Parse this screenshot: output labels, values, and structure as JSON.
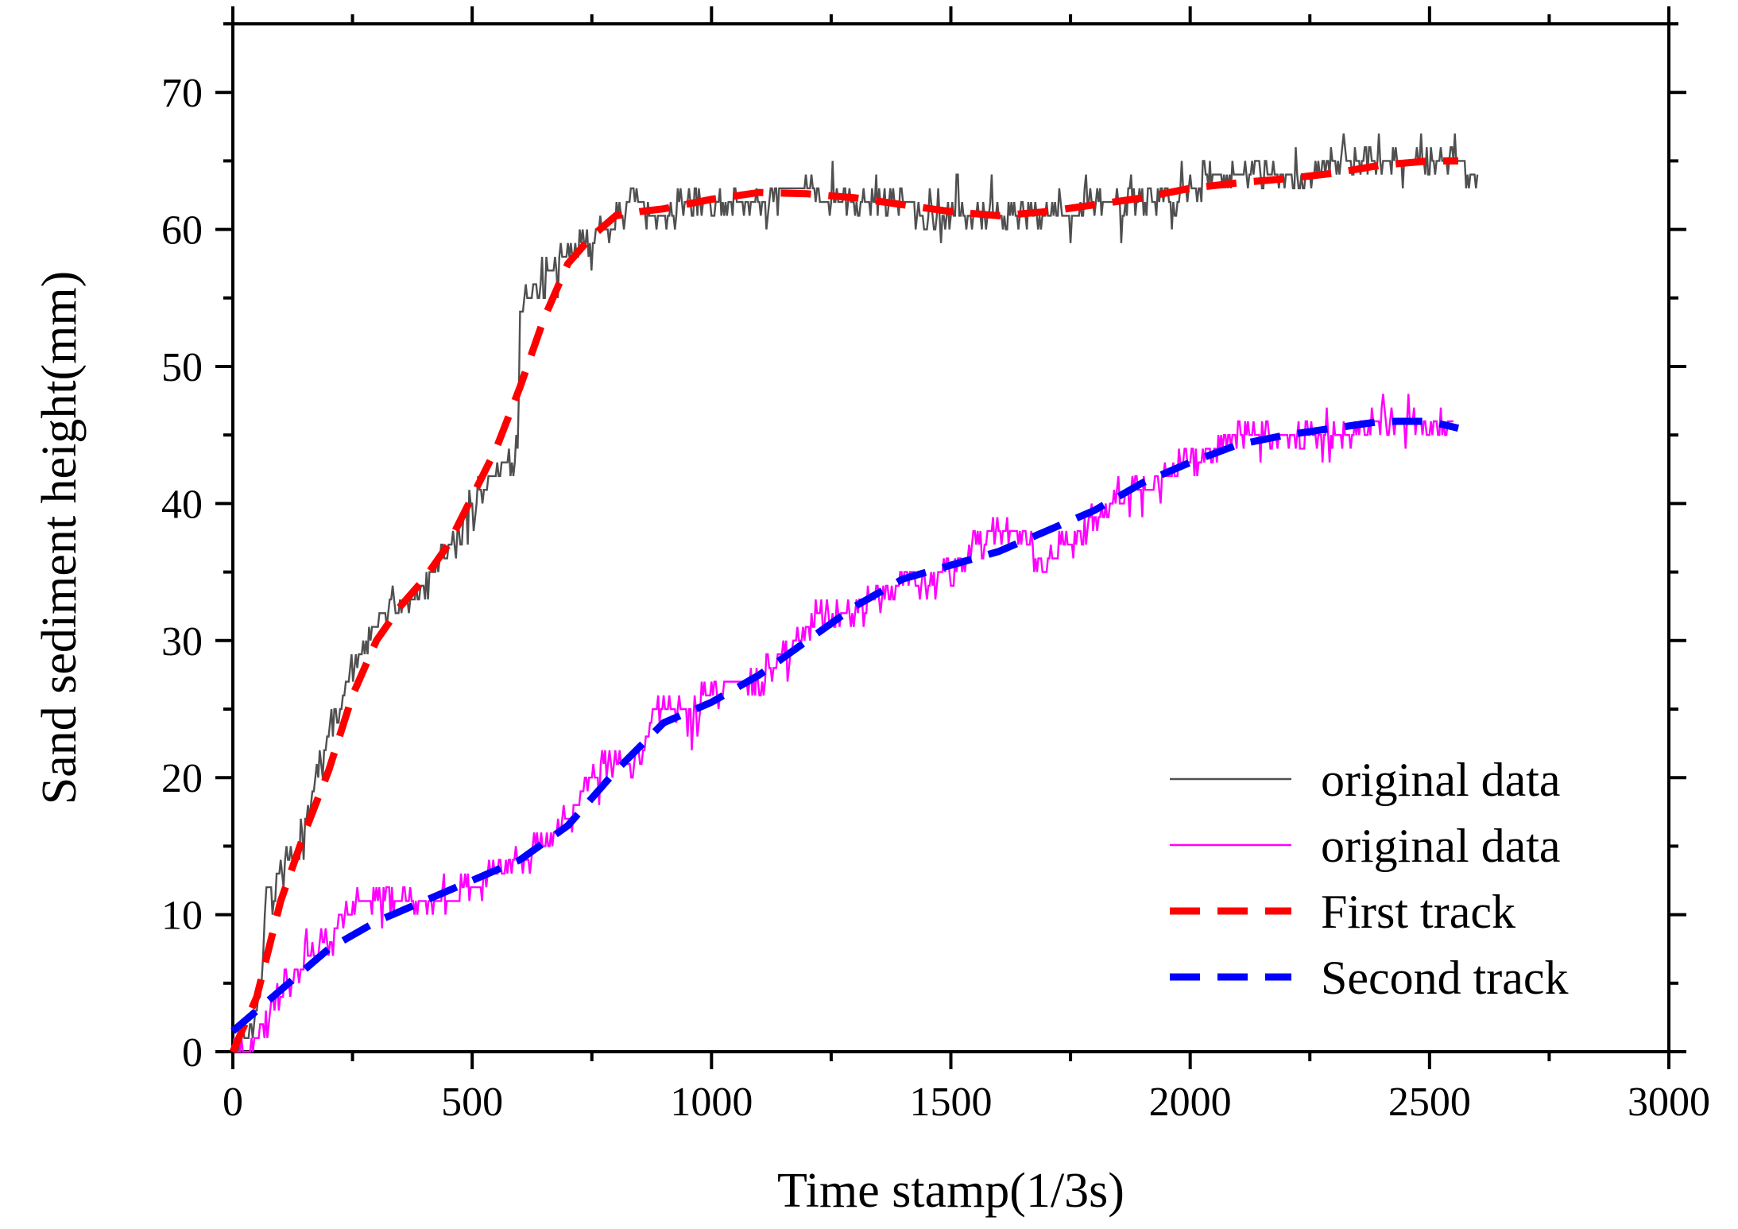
{
  "chart_data": {
    "type": "line",
    "title": "",
    "xlabel": "Time stamp(1/3s)",
    "ylabel": "Sand sediment height(mm)",
    "xlim": [
      0,
      3000
    ],
    "ylim": [
      0,
      75
    ],
    "xticks": [
      0,
      500,
      1000,
      1500,
      2000,
      2500,
      3000
    ],
    "yticks": [
      0,
      10,
      20,
      30,
      40,
      50,
      60,
      70
    ],
    "grid": false,
    "legend_position": "bottom-right",
    "series": [
      {
        "name": "original data",
        "color": "#505050",
        "style": "solid-noisy",
        "x": [
          0,
          30,
          50,
          60,
          70,
          80,
          100,
          130,
          160,
          200,
          230,
          260,
          300,
          340,
          380,
          420,
          460,
          500,
          540,
          580,
          595,
          600,
          615,
          640,
          670,
          700,
          740,
          780,
          820,
          840,
          850,
          870,
          900,
          950,
          1000,
          1050,
          1100,
          1150,
          1200,
          1250,
          1300,
          1350,
          1400,
          1450,
          1500,
          1550,
          1600,
          1650,
          1700,
          1750,
          1800,
          1850,
          1900,
          1950,
          2000,
          2050,
          2100,
          2150,
          2200,
          2250,
          2300,
          2350,
          2400,
          2450,
          2500,
          2550,
          2600
        ],
        "y": [
          0,
          1,
          3,
          5,
          12,
          12,
          13,
          14,
          18,
          23,
          26,
          29,
          31,
          33,
          33,
          35,
          37,
          40,
          42,
          43,
          44,
          54,
          55,
          56,
          57,
          58,
          59,
          60,
          61,
          63,
          62,
          61,
          61,
          62,
          62,
          62,
          62,
          63,
          63,
          62,
          62,
          62,
          62,
          61,
          61,
          61,
          61,
          61,
          61,
          61,
          62,
          62,
          62,
          62,
          63,
          64,
          64,
          64,
          64,
          64,
          65,
          65,
          65,
          65,
          65,
          65,
          64
        ]
      },
      {
        "name": "original data",
        "color": "#ff00ff",
        "style": "solid-noisy",
        "x": [
          0,
          30,
          60,
          90,
          120,
          160,
          200,
          240,
          260,
          300,
          350,
          400,
          450,
          500,
          550,
          600,
          650,
          700,
          750,
          790,
          820,
          860,
          880,
          900,
          950,
          1000,
          1050,
          1100,
          1150,
          1200,
          1250,
          1300,
          1350,
          1400,
          1450,
          1500,
          1550,
          1600,
          1650,
          1680,
          1700,
          1750,
          1800,
          1850,
          1900,
          1950,
          2000,
          2050,
          2100,
          2150,
          2200,
          2250,
          2300,
          2350,
          2400,
          2450,
          2500,
          2550
        ],
        "y": [
          0,
          0,
          2,
          4,
          5,
          7,
          8,
          10,
          11,
          11,
          11,
          11,
          11,
          12,
          13,
          14,
          15,
          17,
          20,
          21,
          21,
          22,
          25,
          25,
          25,
          26,
          27,
          27,
          29,
          31,
          32,
          32,
          33,
          35,
          34,
          35,
          37,
          38,
          38,
          36,
          36,
          37,
          39,
          40,
          41,
          42,
          43,
          44,
          45,
          45,
          45,
          45,
          45,
          45,
          46,
          46,
          46,
          46
        ]
      },
      {
        "name": "First track",
        "color": "#ff0000",
        "style": "dashed",
        "x": [
          0,
          50,
          100,
          150,
          200,
          250,
          300,
          350,
          400,
          450,
          500,
          550,
          600,
          650,
          700,
          750,
          800,
          850,
          900,
          1000,
          1100,
          1200,
          1300,
          1400,
          1500,
          1600,
          1700,
          1800,
          1900,
          2000,
          2100,
          2200,
          2300,
          2400,
          2500,
          2560
        ],
        "y": [
          0,
          4,
          11,
          16,
          20.5,
          26,
          30,
          32.5,
          34.5,
          37,
          40.5,
          44,
          48.5,
          53.5,
          57.5,
          59.5,
          61,
          61.3,
          61.5,
          62.2,
          62.7,
          62.6,
          62.3,
          61.8,
          61.3,
          61,
          61.3,
          61.8,
          62.3,
          63,
          63.4,
          63.7,
          64.1,
          64.7,
          65,
          65
        ]
      },
      {
        "name": "Second track",
        "color": "#0000ff",
        "style": "dashed",
        "x": [
          0,
          100,
          200,
          300,
          400,
          500,
          600,
          700,
          800,
          900,
          1000,
          1100,
          1200,
          1300,
          1400,
          1500,
          1600,
          1700,
          1800,
          1900,
          2000,
          2100,
          2200,
          2300,
          2400,
          2500,
          2560
        ],
        "y": [
          1.5,
          4.5,
          7.5,
          9.5,
          11,
          12.5,
          14,
          16.5,
          20.5,
          24,
          25.5,
          27.5,
          30,
          32.5,
          34.5,
          35.5,
          36.5,
          38,
          39.5,
          41.5,
          43,
          44.3,
          45,
          45.5,
          46,
          46,
          45.5
        ]
      }
    ]
  }
}
